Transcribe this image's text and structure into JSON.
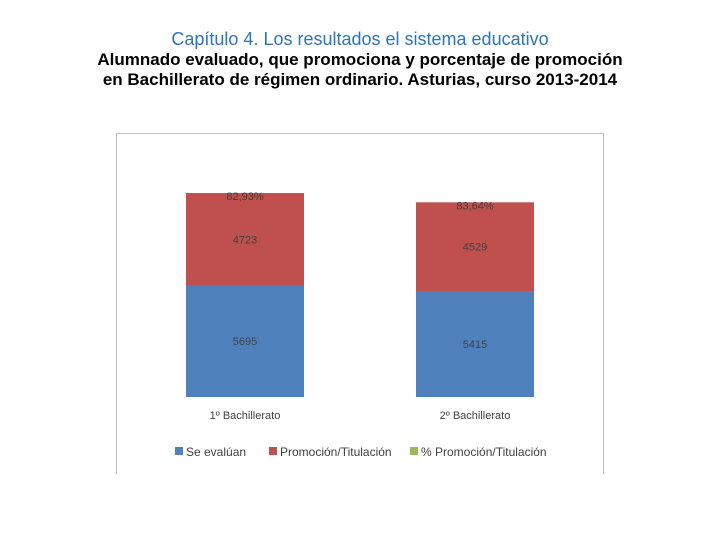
{
  "header": {
    "chapter": "Capítulo 4. Los resultados el sistema educativo",
    "title_line1": "Alumnado evaluado, que promociona y porcentaje de promoción",
    "title_line2": "en Bachillerato de régimen ordinario. Asturias, curso 2013-2014"
  },
  "chart_data": {
    "type": "bar",
    "stacked": true,
    "categories": [
      "1º Bachillerato",
      "2º Bachillerato"
    ],
    "series": [
      {
        "name": "Se evalúan",
        "values": [
          5695,
          5415
        ],
        "color": "#4f81bd"
      },
      {
        "name": "Promoción/Titulación",
        "values": [
          4723,
          4529
        ],
        "color": "#c0504d"
      },
      {
        "name": "% Promoción/Titulación",
        "values": [
          82.93,
          83.64
        ],
        "color": "#9bbb59"
      }
    ],
    "percent_labels": [
      "82,93%",
      "83,64%"
    ],
    "value_labels": {
      "Se evalúan": [
        "5695",
        "5415"
      ],
      "Promoción/Titulación": [
        "4723",
        "4529"
      ]
    },
    "legend_position": "bottom",
    "grid": false
  }
}
